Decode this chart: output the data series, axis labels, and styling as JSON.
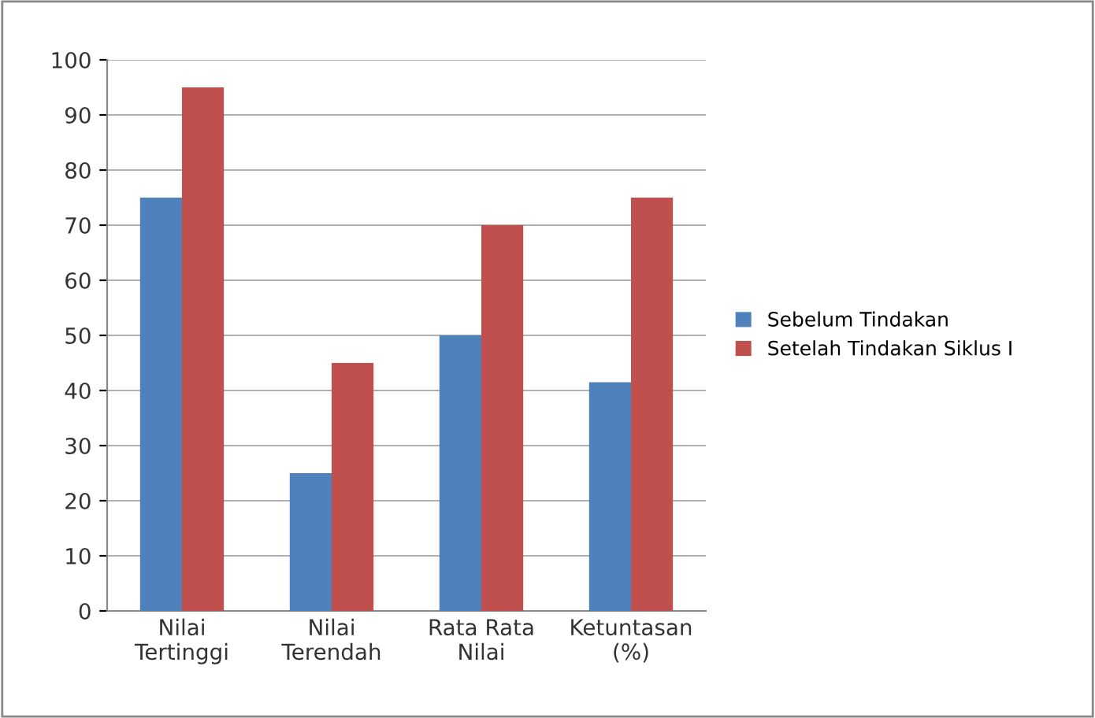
{
  "chart_data": {
    "type": "bar",
    "categories": [
      "Nilai\nTertinggi",
      "Nilai\nTerendah",
      "Rata Rata\nNilai",
      "Ketuntasan\n(%)"
    ],
    "series": [
      {
        "name": "Sebelum Tindakan",
        "color": "#4f81bd",
        "values": [
          75,
          25,
          50,
          41.5
        ]
      },
      {
        "name": "Setelah Tindakan Siklus I",
        "color": "#c0504d",
        "values": [
          95,
          45,
          70,
          75
        ]
      }
    ],
    "ylim": [
      0,
      100
    ],
    "yticks": [
      0,
      10,
      20,
      30,
      40,
      50,
      60,
      70,
      80,
      90,
      100
    ],
    "grid": "y",
    "legend": "right"
  }
}
